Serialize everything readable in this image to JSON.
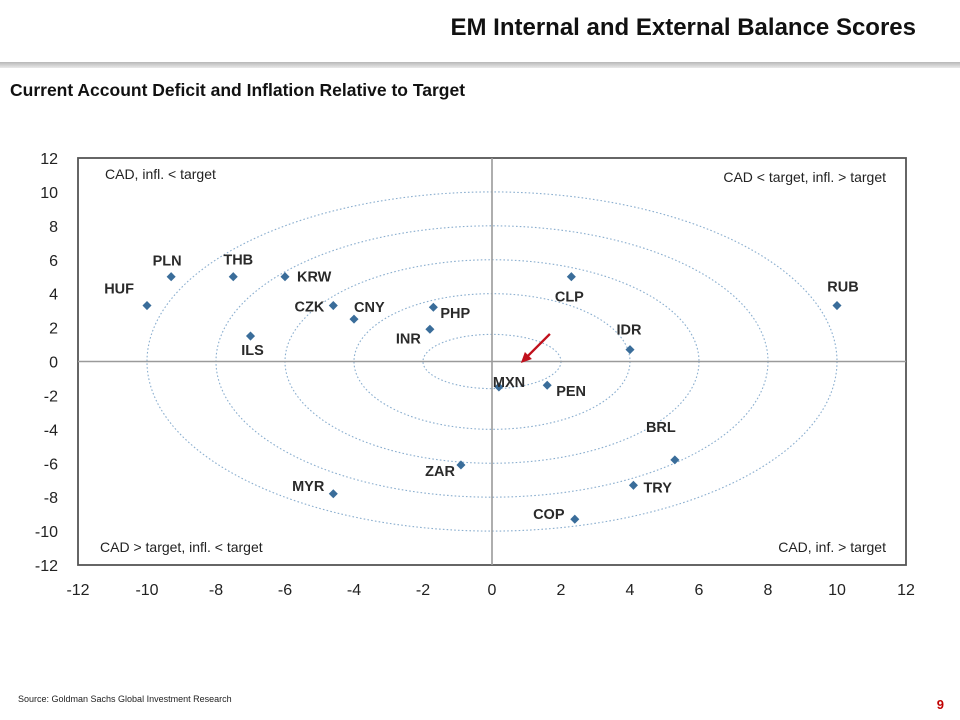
{
  "header": {
    "title": "EM Internal and External Balance Scores"
  },
  "footer": {
    "source": "Source: Goldman Sachs Global Investment Research",
    "page_number": "9"
  },
  "colors": {
    "marker": "#3a6d9a",
    "ring": "#8aaecf",
    "frame": "#555555",
    "arrow": "#c0101c",
    "text": "#222222"
  },
  "chart_data": {
    "type": "scatter",
    "title": "Current Account Deficit and Inflation Relative to Target",
    "xlim": [
      -12,
      12
    ],
    "ylim": [
      -12,
      12
    ],
    "xticks": [
      -12,
      -10,
      -8,
      -6,
      -4,
      -2,
      0,
      2,
      4,
      6,
      8,
      10,
      12
    ],
    "yticks": [
      -12,
      -10,
      -8,
      -6,
      -4,
      -2,
      0,
      2,
      4,
      6,
      8,
      10,
      12
    ],
    "grid": false,
    "reference_ellipses": [
      [
        2,
        1.6
      ],
      [
        4,
        4
      ],
      [
        6,
        6
      ],
      [
        8,
        8
      ],
      [
        10,
        10
      ]
    ],
    "quadrant_labels": [
      {
        "position": "top-left",
        "text": "CAD, infl. < target"
      },
      {
        "position": "top-right",
        "text": "CAD < target, infl. > target"
      },
      {
        "position": "bottom-left",
        "text": "CAD > target, infl. < target"
      },
      {
        "position": "bottom-right",
        "text": "CAD, inf. > target"
      }
    ],
    "points": [
      {
        "label": "HUF",
        "x": -10.0,
        "y": 3.3
      },
      {
        "label": "PLN",
        "x": -9.3,
        "y": 5.0
      },
      {
        "label": "THB",
        "x": -7.5,
        "y": 5.0
      },
      {
        "label": "KRW",
        "x": -6.0,
        "y": 5.0
      },
      {
        "label": "CZK",
        "x": -4.6,
        "y": 3.3
      },
      {
        "label": "CNY",
        "x": -4.0,
        "y": 2.5
      },
      {
        "label": "ILS",
        "x": -7.0,
        "y": 1.5
      },
      {
        "label": "PHP",
        "x": -1.7,
        "y": 3.2
      },
      {
        "label": "INR",
        "x": -1.8,
        "y": 1.9
      },
      {
        "label": "CLP",
        "x": 2.3,
        "y": 5.0
      },
      {
        "label": "RUB",
        "x": 10.0,
        "y": 3.3
      },
      {
        "label": "IDR",
        "x": 4.0,
        "y": 0.7
      },
      {
        "label": "MXN",
        "x": 0.2,
        "y": -1.5
      },
      {
        "label": "PEN",
        "x": 1.6,
        "y": -1.4
      },
      {
        "label": "BRL",
        "x": 5.3,
        "y": -5.8
      },
      {
        "label": "TRY",
        "x": 4.1,
        "y": -7.3
      },
      {
        "label": "COP",
        "x": 2.4,
        "y": -9.3
      },
      {
        "label": "ZAR",
        "x": -0.9,
        "y": -6.1
      },
      {
        "label": "MYR",
        "x": -4.6,
        "y": -7.8
      }
    ],
    "annotation": {
      "type": "arrow",
      "target": "MXN"
    }
  }
}
